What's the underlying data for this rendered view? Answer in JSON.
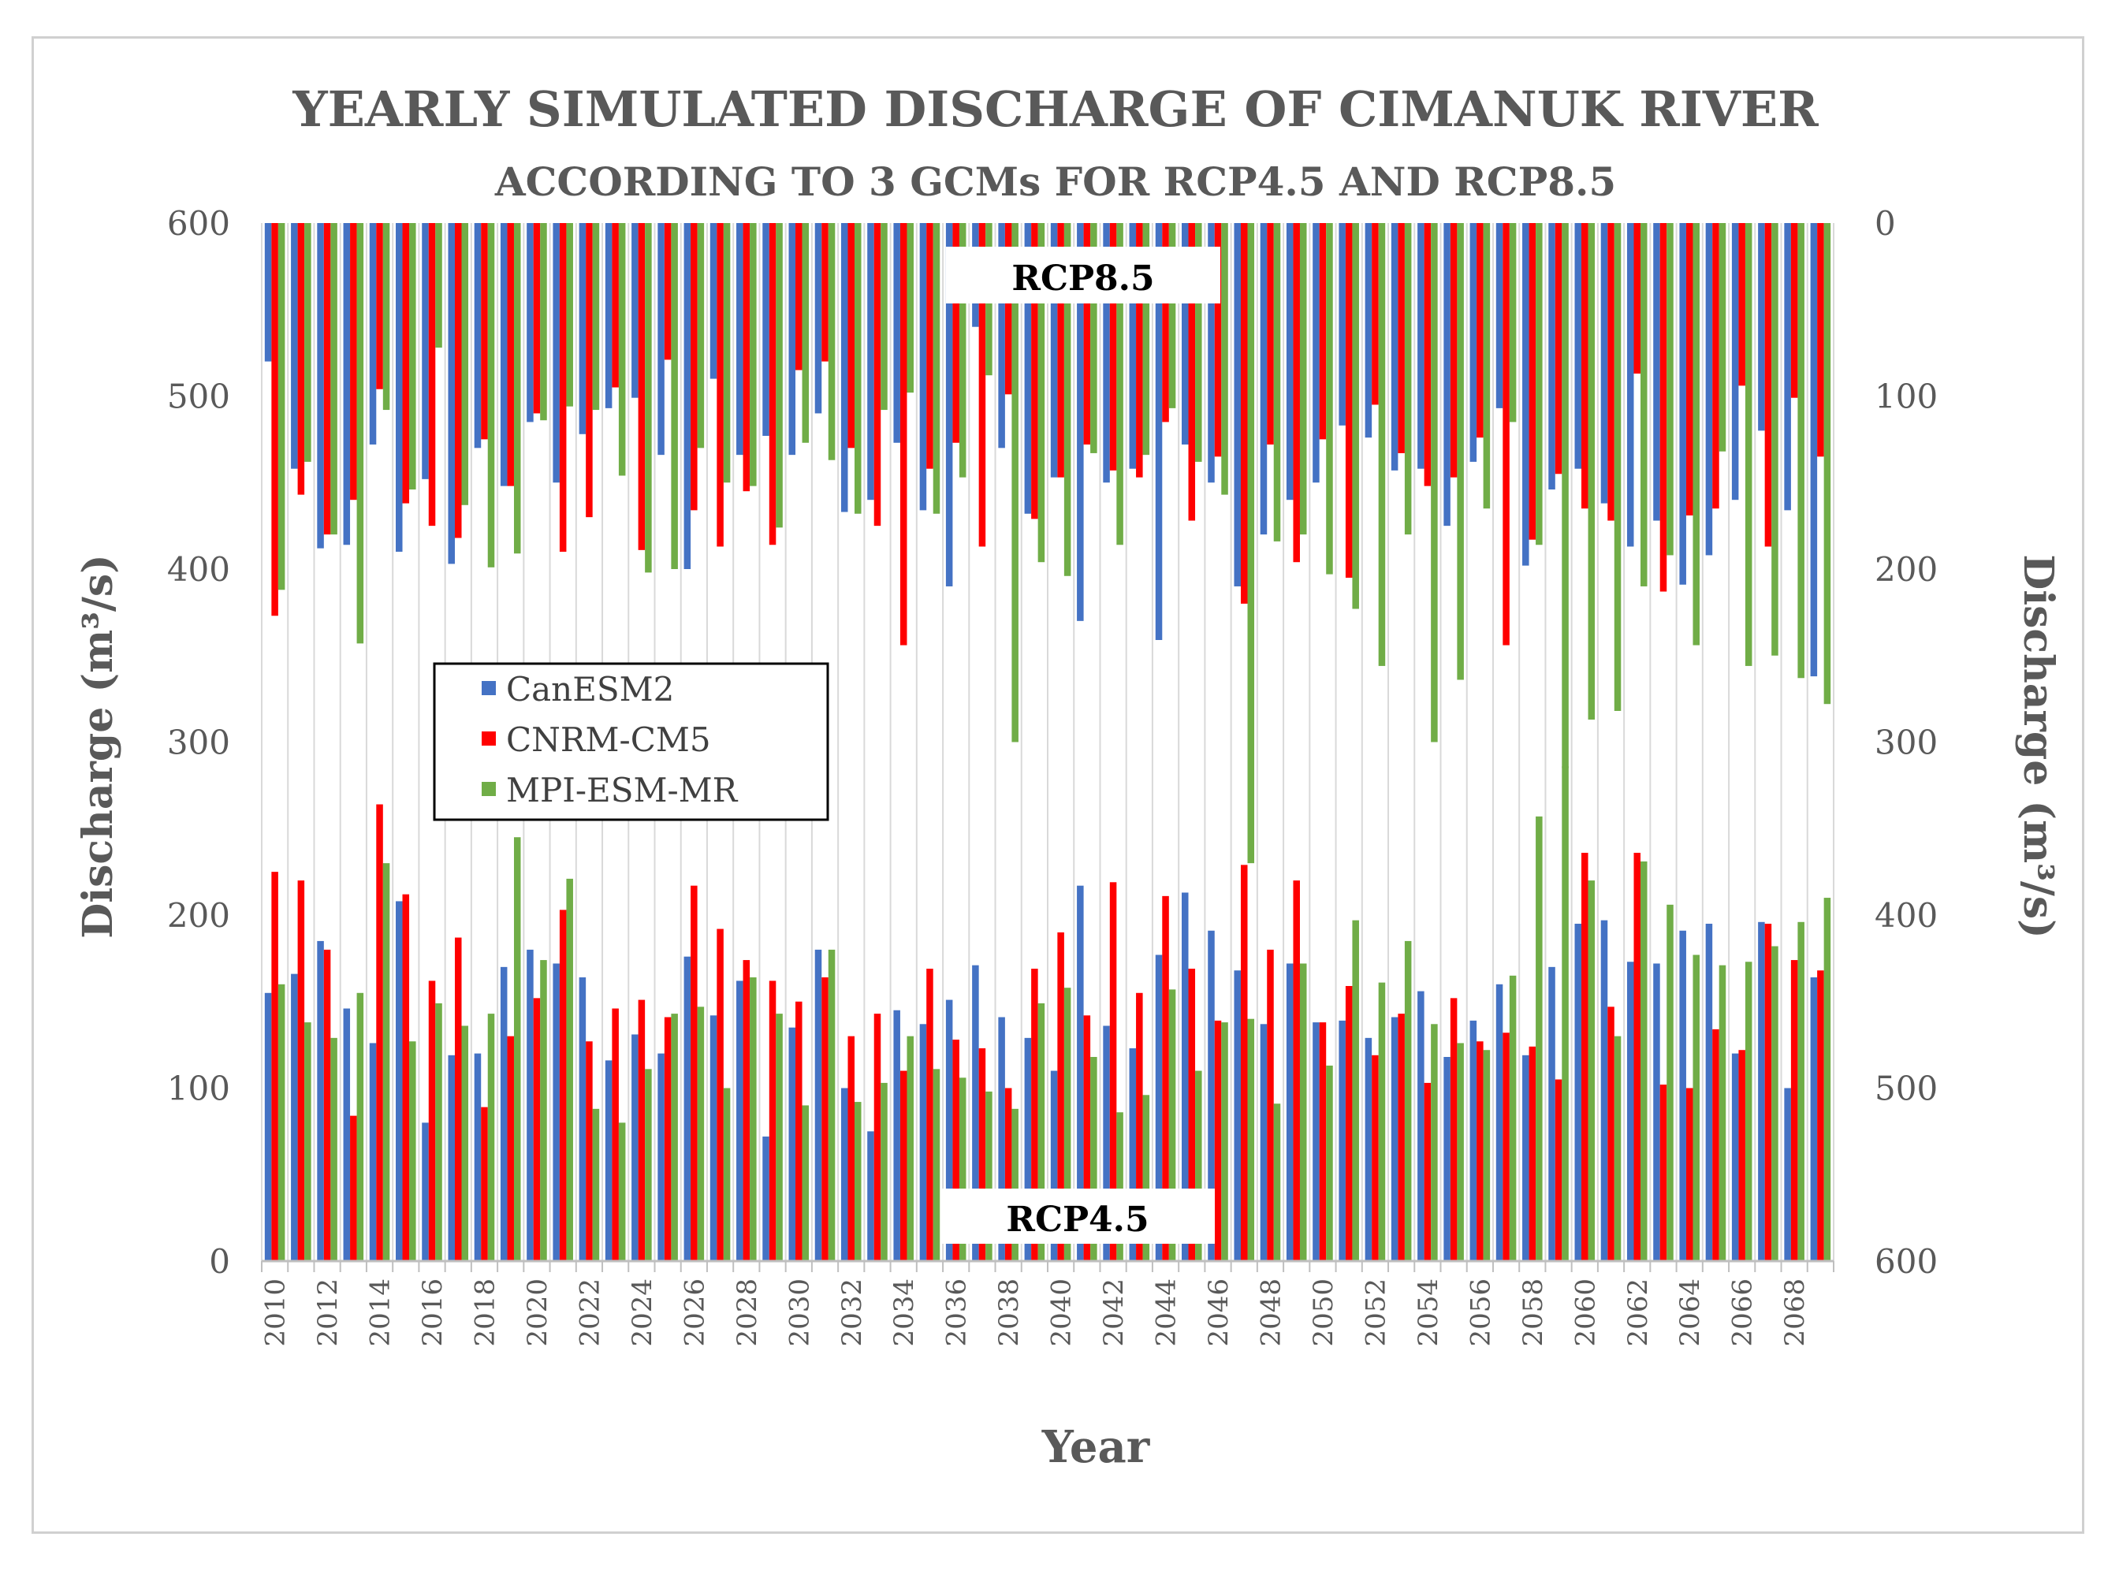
{
  "chart_data": {
    "type": "bar",
    "title": "YEARLY SIMULATED DISCHARGE OF CIMANUK RIVER",
    "subtitle": "ACCORDING  TO 3 GCMs FOR RCP4.5 AND RCP8.5",
    "xlabel": "Year",
    "ylabel_left": "Discharge (m³/s)",
    "ylabel_right": "Discharge (m³/s)",
    "ylim_left": [
      0,
      600
    ],
    "ylim_right": [
      0,
      600
    ],
    "right_axis_inverted": true,
    "yticks_left": [
      "0",
      "100",
      "200",
      "300",
      "400",
      "500",
      "600"
    ],
    "yticks_right": [
      "600",
      "500",
      "400",
      "300",
      "200",
      "100",
      "0"
    ],
    "legend_position": "center-left",
    "grid": "vertical",
    "colors": {
      "CanESM2": "#4472c4",
      "CNRM-CM5": "#ff0000",
      "MPI-ESM-MR": "#70ad47"
    },
    "labels": {
      "rcp45": "RCP4.5",
      "rcp85": "RCP8.5"
    },
    "years": [
      2010,
      2011,
      2012,
      2013,
      2014,
      2015,
      2016,
      2017,
      2018,
      2019,
      2020,
      2021,
      2022,
      2023,
      2024,
      2025,
      2026,
      2027,
      2028,
      2029,
      2030,
      2031,
      2032,
      2033,
      2034,
      2035,
      2036,
      2037,
      2038,
      2039,
      2040,
      2041,
      2042,
      2043,
      2044,
      2045,
      2046,
      2047,
      2048,
      2049,
      2050,
      2051,
      2052,
      2053,
      2054,
      2055,
      2056,
      2057,
      2058,
      2059,
      2060,
      2061,
      2062,
      2063,
      2064,
      2065,
      2066,
      2067,
      2068,
      2069
    ],
    "xtick_labels": [
      "2010",
      "2012",
      "2014",
      "2016",
      "2018",
      "2020",
      "2022",
      "2024",
      "2026",
      "2028",
      "2030",
      "2032",
      "2034",
      "2036",
      "2038",
      "2040",
      "2042",
      "2044",
      "2046",
      "2048",
      "2050",
      "2052",
      "2054",
      "2056",
      "2058",
      "2060",
      "2062",
      "2064",
      "2066",
      "2068"
    ],
    "series": [
      {
        "name": "CanESM2",
        "rcp45": [
          155,
          166,
          185,
          146,
          126,
          208,
          80,
          119,
          120,
          170,
          180,
          172,
          164,
          116,
          131,
          120,
          176,
          142,
          162,
          72,
          135,
          180,
          100,
          75,
          145,
          137,
          151,
          171,
          141,
          129,
          110,
          217,
          136,
          123,
          177,
          213,
          191,
          168,
          137,
          172,
          138,
          139,
          129,
          141,
          156,
          118,
          139,
          160,
          119,
          170,
          195,
          197,
          173,
          172,
          191,
          195,
          120,
          196,
          100,
          164
        ],
        "rcp85": [
          80,
          142,
          188,
          186,
          128,
          190,
          148,
          197,
          130,
          152,
          115,
          150,
          122,
          107,
          101,
          134,
          200,
          90,
          134,
          123,
          134,
          110,
          167,
          160,
          127,
          166,
          210,
          60,
          130,
          168,
          147,
          230,
          150,
          142,
          241,
          128,
          150,
          210,
          180,
          160,
          150,
          117,
          124,
          143,
          142,
          175,
          138,
          107,
          198,
          154,
          142,
          162,
          187,
          172,
          209,
          192,
          160,
          120,
          166,
          262
        ]
      },
      {
        "name": "CNRM-CM5",
        "rcp45": [
          225,
          220,
          180,
          84,
          264,
          212,
          162,
          187,
          89,
          130,
          152,
          203,
          127,
          146,
          151,
          141,
          217,
          192,
          174,
          162,
          150,
          164,
          130,
          143,
          110,
          169,
          128,
          123,
          100,
          169,
          190,
          142,
          219,
          155,
          211,
          169,
          139,
          229,
          180,
          220,
          138,
          159,
          119,
          143,
          103,
          152,
          127,
          132,
          124,
          105,
          236,
          147,
          236,
          102,
          100,
          134,
          122,
          195,
          174,
          168
        ],
        "rcp85": [
          227,
          157,
          180,
          160,
          96,
          162,
          175,
          182,
          125,
          152,
          110,
          190,
          170,
          95,
          189,
          79,
          166,
          187,
          155,
          186,
          85,
          80,
          130,
          175,
          244,
          142,
          127,
          187,
          99,
          171,
          147,
          128,
          143,
          147,
          115,
          172,
          135,
          220,
          128,
          196,
          125,
          205,
          105,
          133,
          152,
          147,
          124,
          244,
          183,
          145,
          165,
          172,
          87,
          213,
          169,
          165,
          94,
          187,
          101,
          135
        ]
      },
      {
        "name": "MPI-ESM-MR",
        "rcp45": [
          160,
          138,
          129,
          155,
          230,
          127,
          149,
          136,
          143,
          245,
          174,
          221,
          88,
          80,
          111,
          143,
          147,
          100,
          164,
          143,
          90,
          180,
          92,
          103,
          130,
          111,
          106,
          98,
          88,
          149,
          158,
          118,
          86,
          96,
          157,
          110,
          138,
          140,
          91,
          172,
          113,
          197,
          161,
          185,
          137,
          126,
          122,
          165,
          257,
          286,
          220,
          130,
          231,
          206,
          177,
          171,
          173,
          182,
          196,
          210
        ],
        "rcp85": [
          212,
          138,
          180,
          243,
          108,
          154,
          72,
          163,
          199,
          191,
          114,
          106,
          108,
          146,
          202,
          200,
          130,
          150,
          152,
          176,
          127,
          137,
          168,
          108,
          98,
          168,
          147,
          88,
          300,
          196,
          204,
          133,
          186,
          134,
          107,
          138,
          157,
          370,
          184,
          180,
          203,
          223,
          256,
          180,
          300,
          264,
          165,
          115,
          186,
          315,
          287,
          282,
          210,
          192,
          244,
          132,
          256,
          250,
          263,
          278
        ]
      }
    ]
  }
}
